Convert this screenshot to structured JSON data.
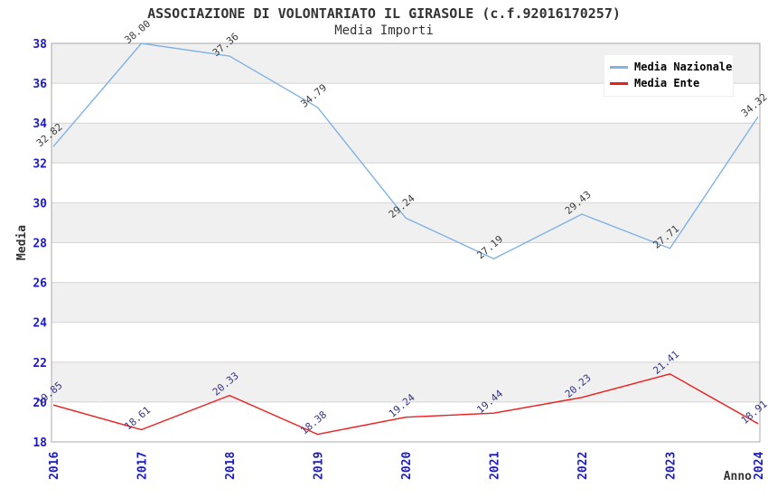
{
  "chart_data": {
    "type": "line",
    "title": "ASSOCIAZIONE DI VOLONTARIATO IL GIRASOLE (c.f.92016170257)",
    "subtitle": "Media Importi",
    "xlabel": "Anno",
    "ylabel": "Media",
    "categories": [
      "2016",
      "2017",
      "2018",
      "2019",
      "2020",
      "2021",
      "2022",
      "2023",
      "2024"
    ],
    "ylim": [
      18,
      38
    ],
    "ytick_step": 2,
    "yticks": [
      18,
      20,
      22,
      24,
      26,
      28,
      30,
      32,
      34,
      36,
      38
    ],
    "grid": "horizontal-bands-alternating",
    "legend_position": "top-right-inside",
    "point_label_format": "2-decimals",
    "series": [
      {
        "name": "Media Nazionale",
        "color": "#7fb2e5",
        "label_color": "#3c3c3c",
        "values": [
          32.82,
          38.0,
          37.36,
          34.79,
          29.24,
          27.19,
          29.43,
          27.71,
          34.32
        ]
      },
      {
        "name": "Media Ente",
        "color": "#ee1c1c",
        "label_color": "#333388",
        "values": [
          19.85,
          18.61,
          20.33,
          18.38,
          19.24,
          19.44,
          20.23,
          21.41,
          18.91
        ]
      }
    ],
    "colors": {
      "axis_tick_label": "#1a1acc",
      "axis_title": "#333333",
      "band_fill": "#f0f0f0",
      "gridline": "#d4d4d4",
      "plot_border": "#a8a8a8",
      "title_text": "#333333",
      "legend_bg": "#ffffff"
    }
  }
}
